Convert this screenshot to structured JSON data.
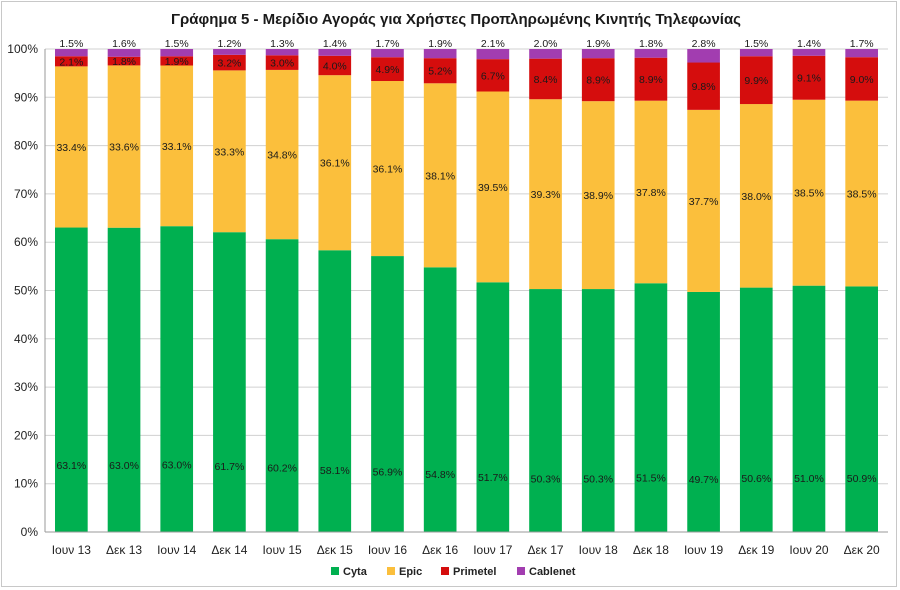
{
  "chart_data": {
    "type": "bar",
    "stacked": true,
    "title": "Γράφημα 5 - Μερίδιο Αγοράς για Χρήστες Προπληρωμένης Κινητής Τηλεφωνίας",
    "categories": [
      "Ιουν 13",
      "Δεκ 13",
      "Ιουν 14",
      "Δεκ 14",
      "Ιουν 15",
      "Δεκ 15",
      "Ιουν 16",
      "Δεκ 16",
      "Ιουν 17",
      "Δεκ 17",
      "Ιουν 18",
      "Δεκ 18",
      "Ιουν 19",
      "Δεκ 19",
      "Ιουν 20",
      "Δεκ 20"
    ],
    "series": [
      {
        "name": "Cyta",
        "color": "#00b050",
        "values": [
          63.1,
          63.0,
          63.0,
          61.7,
          60.2,
          58.1,
          56.9,
          54.8,
          51.7,
          50.3,
          50.3,
          51.5,
          49.7,
          50.6,
          51.0,
          50.9
        ],
        "labels": [
          "63.1%",
          "63.0%",
          "63.0%",
          "61.7%",
          "60.2%",
          "58.1%",
          "56.9%",
          "54.8%",
          "51.7%",
          "50.3%",
          "50.3%",
          "51.5%",
          "49.7%",
          "50.6%",
          "51.0%",
          "50.9%"
        ]
      },
      {
        "name": "Epic",
        "color": "#fbbf3c",
        "values": [
          33.4,
          33.6,
          33.1,
          33.3,
          34.8,
          36.1,
          36.1,
          38.1,
          39.5,
          39.3,
          38.9,
          37.8,
          37.7,
          38.0,
          38.5,
          38.5
        ],
        "labels": [
          "33.4%",
          "33.6%",
          "33.1%",
          "33.3%",
          "34.8%",
          "36.1%",
          "36.1%",
          "38.1%",
          "39.5%",
          "39.3%",
          "38.9%",
          "37.8%",
          "37.7%",
          "38.0%",
          "38.5%",
          "38.5%"
        ]
      },
      {
        "name": "Primetel",
        "color": "#d50d0d",
        "values": [
          2.1,
          1.8,
          1.9,
          3.2,
          3.0,
          4.0,
          4.9,
          5.2,
          6.7,
          8.4,
          8.9,
          8.9,
          9.8,
          9.9,
          9.1,
          9.0
        ],
        "labels": [
          "2.1%",
          "1.8%",
          "1.9%",
          "3.2%",
          "3.0%",
          "4.0%",
          "4.9%",
          "5.2%",
          "6.7%",
          "8.4%",
          "8.9%",
          "8.9%",
          "9.8%",
          "9.9%",
          "9.1%",
          "9.0%"
        ]
      },
      {
        "name": "Cablenet",
        "color": "#a23db0",
        "values": [
          1.5,
          1.6,
          1.5,
          1.2,
          1.3,
          1.4,
          1.7,
          1.9,
          2.1,
          2.0,
          1.9,
          1.8,
          2.8,
          1.5,
          1.4,
          1.7
        ],
        "labels": [
          "1.5%",
          "1.6%",
          "1.5%",
          "1.2%",
          "1.3%",
          "1.4%",
          "1.7%",
          "1.9%",
          "2.1%",
          "2.0%",
          "1.9%",
          "1.8%",
          "2.8%",
          "1.5%",
          "1.4%",
          "1.7%"
        ]
      }
    ],
    "yticks": [
      "0%",
      "10%",
      "20%",
      "30%",
      "40%",
      "50%",
      "60%",
      "70%",
      "80%",
      "90%",
      "100%"
    ],
    "ylim": [
      0,
      100
    ],
    "grid": true,
    "legend_position": "bottom"
  }
}
